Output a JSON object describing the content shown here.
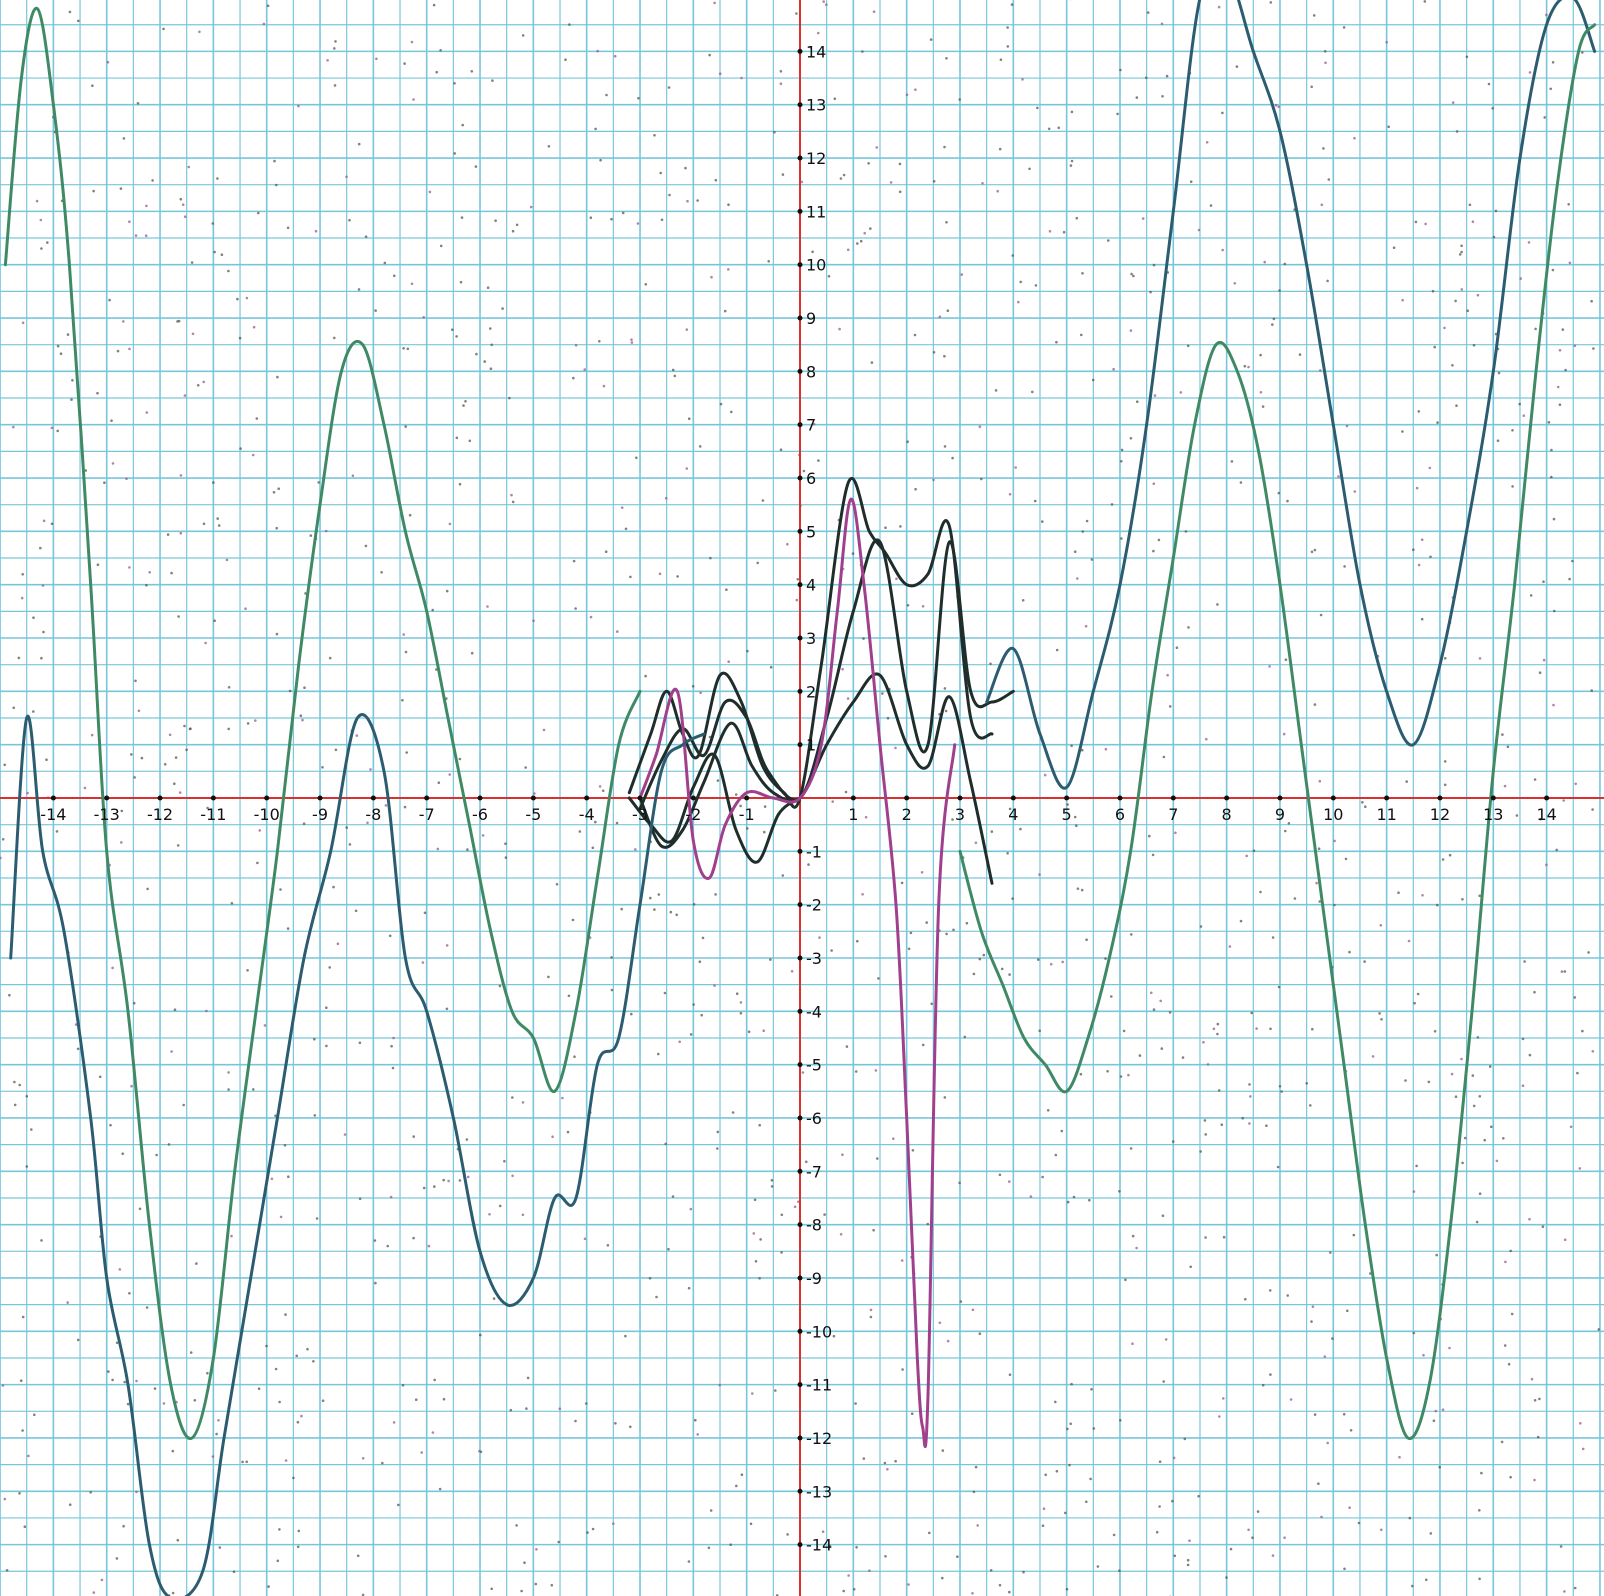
{
  "chart_data": {
    "type": "line",
    "title": "",
    "xlabel": "",
    "ylabel": "",
    "xlim": [
      -15,
      15
    ],
    "ylim": [
      -15,
      15
    ],
    "grid": true,
    "grid_step": 0.5,
    "x_ticks": [
      -14,
      -13,
      -12,
      -11,
      -10,
      -9,
      -8,
      -7,
      -6,
      -5,
      -4,
      -3,
      -2,
      -1,
      1,
      2,
      3,
      4,
      5,
      6,
      7,
      8,
      9,
      10,
      11,
      12,
      13,
      14
    ],
    "y_ticks": [
      -14,
      -13,
      -12,
      -11,
      -10,
      -9,
      -8,
      -7,
      -6,
      -5,
      -4,
      -3,
      -2,
      -1,
      1,
      2,
      3,
      4,
      5,
      6,
      7,
      8,
      9,
      10,
      11,
      12,
      13,
      14
    ],
    "x_tick_labels": [
      "-14",
      "-13",
      "-12",
      "-11",
      "-10",
      "-9",
      "-8",
      "-7",
      "-6",
      "-5",
      "-4",
      "-3",
      "-2",
      "-1",
      "1",
      "2",
      "3",
      "4",
      "5",
      "6",
      "7",
      "8",
      "9",
      "10",
      "11",
      "12",
      "13",
      "14"
    ],
    "y_tick_labels": [
      "-14",
      "-13",
      "-12",
      "-11",
      "-10",
      "-9",
      "-8",
      "-7",
      "-6",
      "-5",
      "-4",
      "-3",
      "-2",
      "-1",
      "1",
      "2",
      "3",
      "4",
      "5",
      "6",
      "7",
      "8",
      "9",
      "10",
      "11",
      "12",
      "13",
      "14"
    ],
    "colors": {
      "grid": "#79c6dc",
      "axes": "#d93030",
      "tick_text": "#111111",
      "series_dark": "#1f2d2b",
      "series_slate": "#2b5c70",
      "series_green": "#3f8a64",
      "series_magenta": "#a0408c",
      "scatter_grey": "#555a48",
      "scatter_purple": "#9a5a92"
    },
    "series": [
      {
        "id": "dark-wide",
        "color": "#1f2d2b",
        "x": [
          -3.2,
          -2.8,
          -2.5,
          -2.2,
          -1.9,
          -1.5,
          -1.1,
          -0.7,
          -0.3,
          0,
          0.4,
          0.9,
          1.3,
          1.6,
          2.0,
          2.4,
          2.8,
          3.2,
          3.6
        ],
        "y": [
          0.1,
          1.2,
          2.0,
          1.2,
          0.8,
          2.3,
          1.8,
          0.6,
          0.1,
          0,
          2.5,
          5.9,
          5.0,
          4.6,
          4.0,
          4.2,
          5.1,
          1.5,
          1.2
        ]
      },
      {
        "id": "dark-mid",
        "color": "#1f2d2b",
        "x": [
          -3.0,
          -2.6,
          -2.2,
          -1.8,
          -1.4,
          -1.0,
          -0.6,
          0,
          0.5,
          1.0,
          1.5,
          2.0,
          2.4,
          2.8,
          3.2,
          3.6,
          4.0
        ],
        "y": [
          -0.2,
          0.7,
          1.3,
          0.8,
          1.8,
          1.5,
          0.5,
          0,
          1.5,
          3.5,
          4.8,
          2.0,
          1.0,
          4.8,
          2.0,
          1.8,
          2.0
        ]
      },
      {
        "id": "dark-low",
        "color": "#1f2d2b",
        "x": [
          -3.0,
          -2.6,
          -2.2,
          -1.8,
          -1.3,
          -0.9,
          -0.5,
          0,
          0.5,
          1.0,
          1.5,
          2.0,
          2.4,
          2.8,
          3.2,
          3.6
        ],
        "y": [
          0.0,
          -0.9,
          -0.6,
          0.3,
          1.4,
          0.6,
          0.1,
          0,
          1.0,
          1.8,
          2.3,
          1.0,
          0.6,
          1.9,
          0.3,
          -1.6
        ]
      },
      {
        "id": "dark-neg",
        "color": "#1f2d2b",
        "x": [
          -3.2,
          -2.8,
          -2.4,
          -2.0,
          -1.6,
          -1.2,
          -0.8,
          -0.4,
          0
        ],
        "y": [
          0.0,
          -0.5,
          -0.8,
          0.2,
          0.8,
          -0.6,
          -1.2,
          -0.3,
          0
        ]
      },
      {
        "id": "magenta",
        "color": "#a0408c",
        "x": [
          -3.0,
          -2.7,
          -2.3,
          -2.0,
          -1.7,
          -1.4,
          -1.0,
          -0.5,
          0,
          0.4,
          0.7,
          0.95,
          1.2,
          1.5,
          1.8,
          2.0,
          2.2,
          2.3,
          2.4,
          2.6,
          2.9
        ],
        "y": [
          0.0,
          0.8,
          2.0,
          -0.8,
          -1.5,
          -0.5,
          0.1,
          0.0,
          0,
          1.0,
          3.5,
          5.6,
          4.0,
          1.0,
          -2.0,
          -6.0,
          -10.5,
          -11.8,
          -11.2,
          -2.0,
          1.0
        ]
      },
      {
        "id": "slate-wave",
        "color": "#2b5c70",
        "x": [
          -14.8,
          -14.5,
          -14.2,
          -13.8,
          -13.3,
          -13.0,
          -12.6,
          -12.2,
          -11.8,
          -11.2,
          -10.8,
          -10.3,
          -9.8,
          -9.3,
          -8.8,
          -8.3,
          -7.8,
          -7.4,
          -7.0,
          -6.5,
          -6.0,
          -5.5,
          -5.0,
          -4.6,
          -4.2,
          -3.8,
          -3.4,
          -3.0,
          -2.6,
          -2.2,
          -1.8
        ],
        "y": [
          -3.0,
          1.5,
          -1.0,
          -2.5,
          -6.0,
          -9.0,
          -11.0,
          -14.0,
          -15.0,
          -14.5,
          -12.0,
          -9.0,
          -6.0,
          -3.0,
          -1.0,
          1.5,
          0.5,
          -3.0,
          -4.0,
          -6.0,
          -8.5,
          -9.5,
          -9.0,
          -7.5,
          -7.5,
          -5.0,
          -4.5,
          -2.0,
          0.5,
          1.0,
          1.2
        ]
      },
      {
        "id": "slate-wave-right",
        "color": "#2b5c70",
        "x": [
          3.5,
          4.0,
          4.5,
          5.0,
          5.5,
          6.0,
          6.5,
          7.0,
          7.5,
          8.0,
          8.5,
          9.0,
          9.5,
          10.0,
          10.5,
          11.0,
          11.5,
          12.0,
          12.5,
          13.0,
          13.5,
          14.0,
          14.5,
          14.9
        ],
        "y": [
          1.8,
          2.8,
          1.2,
          0.2,
          2.0,
          4.0,
          7.0,
          11.0,
          15.0,
          15.5,
          14.0,
          12.5,
          10.0,
          7.0,
          4.0,
          2.0,
          1.0,
          2.5,
          5.0,
          8.0,
          12.0,
          14.5,
          15.0,
          14.0
        ]
      },
      {
        "id": "green-wave",
        "color": "#3f8a64",
        "x": [
          -14.9,
          -14.6,
          -14.3,
          -14.0,
          -13.7,
          -13.3,
          -13.0,
          -12.6,
          -12.2,
          -11.8,
          -11.4,
          -11.0,
          -10.6,
          -10.2,
          -9.8,
          -9.4,
          -9.0,
          -8.6,
          -8.2,
          -7.8,
          -7.4,
          -7.0,
          -6.6,
          -6.2,
          -5.8,
          -5.4,
          -5.0,
          -4.6,
          -4.2,
          -3.8,
          -3.4,
          -3.0
        ],
        "y": [
          10.0,
          13.5,
          14.8,
          13.0,
          10.0,
          4.0,
          -1.0,
          -4.0,
          -8.0,
          -11.0,
          -12.0,
          -10.5,
          -7.0,
          -4.0,
          -1.0,
          2.5,
          5.5,
          8.0,
          8.5,
          7.0,
          5.0,
          3.5,
          1.5,
          -0.5,
          -2.5,
          -4.0,
          -4.5,
          -5.5,
          -4.0,
          -1.5,
          1.0,
          2.0
        ]
      },
      {
        "id": "green-wave-right",
        "color": "#3f8a64",
        "x": [
          3.0,
          3.4,
          3.8,
          4.2,
          4.6,
          5.0,
          5.4,
          5.8,
          6.2,
          6.6,
          7.0,
          7.4,
          7.8,
          8.2,
          8.6,
          9.0,
          9.4,
          9.8,
          10.2,
          10.6,
          11.0,
          11.4,
          11.8,
          12.2,
          12.6,
          13.0,
          13.4,
          13.8,
          14.2,
          14.6,
          14.9
        ],
        "y": [
          -1.0,
          -2.5,
          -3.5,
          -4.5,
          -5.0,
          -5.5,
          -4.5,
          -3.0,
          -1.0,
          2.0,
          4.5,
          7.0,
          8.5,
          8.0,
          6.5,
          4.0,
          1.0,
          -2.0,
          -5.0,
          -8.0,
          -10.5,
          -12.0,
          -11.0,
          -8.0,
          -4.0,
          0.5,
          4.0,
          8.0,
          11.5,
          14.0,
          14.5
        ]
      }
    ],
    "scatter_clouds": [
      {
        "color": "#555a48",
        "x_range": [
          -15,
          15
        ],
        "y_range": [
          -15,
          15
        ],
        "count": 900
      },
      {
        "color": "#9a5a92",
        "x_range": [
          -15,
          15
        ],
        "y_range": [
          -15,
          15
        ],
        "count": 350
      }
    ]
  }
}
